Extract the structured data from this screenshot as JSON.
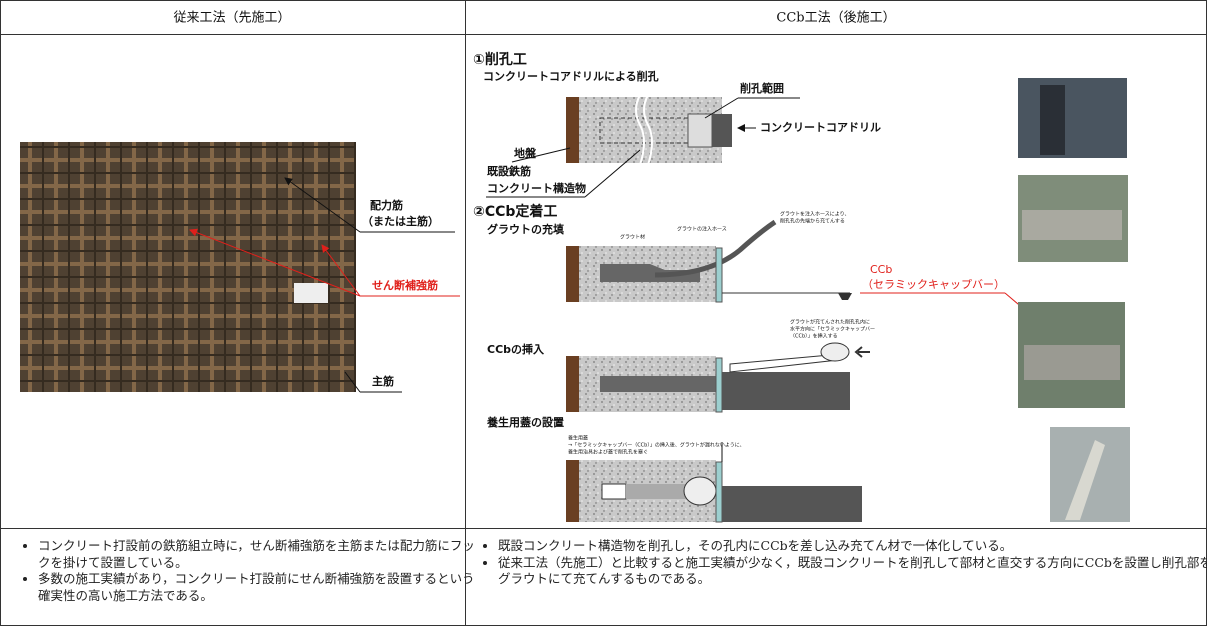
{
  "header": [
    "従来工法（先施工）",
    "CCb工法（後施工）"
  ],
  "left": {
    "photo_labels": [
      {
        "line1": "配力筋",
        "line2": "（または主筋）"
      },
      "せん断補強筋",
      "主筋"
    ],
    "bullets": [
      "コンクリート打設前の鉄筋組立時に，せん断補強筋を主筋または配力筋にフックを掛けて設置している。",
      "多数の施工実績があり，コンクリート打設前にせん断補強筋を設置するという確実性の高い施工方法である。"
    ]
  },
  "right": {
    "step1": {
      "title": "①削孔工",
      "subtitle": "コンクリートコアドリルによる削孔",
      "labels": [
        "削孔範囲",
        "コンクリートコアドリル",
        "地盤",
        "既設鉄筋",
        "コンクリート構造物"
      ]
    },
    "step2": {
      "title": "②CCb定着工",
      "parts": [
        {
          "title": "グラウトの充填",
          "notes": [
            "グラウト材",
            "グラウトの注入ホース",
            "グラウトを注入ホースにより、",
            "削孔孔の先端から充てんする"
          ]
        },
        {
          "title": "CCbの挿入",
          "notes": [
            "グラウトが充てんされた削孔孔内に",
            "水平方向に「セラミックキャップバー",
            "（CCb）」を挿入する"
          ]
        },
        {
          "title": "養生用蓋の設置",
          "notes": [
            "養生用蓋",
            "→「セラミックキャップバー（CCb）」の挿入後、グラウトが漏れないように、",
            "養生用治具および蓋で削孔孔を塞ぐ"
          ]
        }
      ],
      "ccb_label": [
        "CCb",
        "（セラミックキャップバー）"
      ]
    },
    "bullets": [
      "既設コンクリート構造物を削孔し，その孔内にCCbを差し込み充てん材で一体化している。",
      "従来工法（先施工）と比較すると施工実績が少なく，既設コンクリートを削孔して部材と直交する方向にCCbを設置し削孔部をグラウトにて充てんするものである。"
    ]
  }
}
